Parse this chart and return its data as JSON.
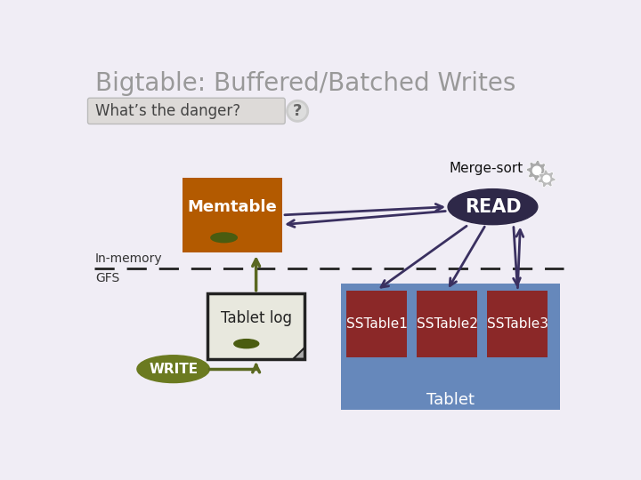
{
  "title": "Bigtable: Buffered/Batched Writes",
  "title_color": "#999999",
  "bg_color": "#f0edf5",
  "question_box_text": "What’s the danger?",
  "question_box_color": "#dddad8",
  "question_box_edge": "#bbbbbb",
  "in_memory_label": "In-memory",
  "gfs_label": "GFS",
  "memtable_color": "#b35a00",
  "memtable_text": "Memtable",
  "memtable_text_color": "#ffffff",
  "memtable_oval_color": "#4a5c10",
  "tablet_log_color": "#e8e8de",
  "tablet_log_edge": "#222222",
  "tablet_log_text": "Tablet log",
  "tablet_log_text_color": "#222222",
  "tablet_log_oval_color": "#4a5c10",
  "write_ellipse_color": "#6b7a20",
  "write_text": "WRITE",
  "write_text_color": "#ffffff",
  "read_ellipse_color": "#2e2848",
  "read_text": "READ",
  "read_text_color": "#ffffff",
  "merge_sort_text": "Merge-sort",
  "merge_sort_color": "#111111",
  "tablet_bg_color": "#6688bb",
  "tablet_text": "Tablet",
  "tablet_text_color": "#ffffff",
  "sstable_color": "#8b2828",
  "sstable_labels": [
    "SSTable1",
    "SSTable2",
    "SSTable3"
  ],
  "sstable_text_color": "#ffffff",
  "purple_arrow_color": "#3a3060",
  "green_arrow_color": "#5a6820",
  "dashed_line_color": "#222222",
  "gear_color1": "#aaaaaa",
  "gear_color2": "#bbbbbb"
}
